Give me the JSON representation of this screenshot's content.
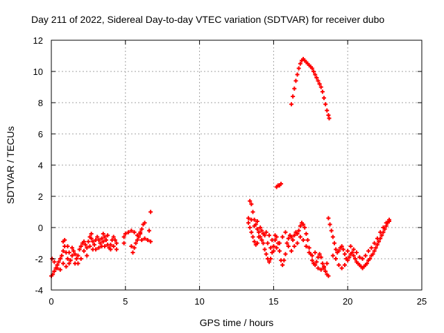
{
  "chart_data": {
    "type": "scatter",
    "title": "Day 211 of 2022, Sidereal Day-to-day VTEC variation (SDTVAR) for receiver dubo",
    "xlabel": "GPS time / hours",
    "ylabel": "SDTVAR / TECUs",
    "xlim": [
      0,
      25
    ],
    "ylim": [
      -4,
      12
    ],
    "xticks": [
      "0",
      "5",
      "10",
      "15",
      "20",
      "25"
    ],
    "yticks": [
      "-4",
      "-2",
      "0",
      "2",
      "4",
      "6",
      "8",
      "10",
      "12"
    ],
    "grid": true,
    "marker": "plus",
    "color": "#ff0000",
    "series": [
      {
        "name": "SDTVAR",
        "points": [
          [
            0.0,
            -3.1
          ],
          [
            0.1,
            -3.0
          ],
          [
            0.2,
            -2.8
          ],
          [
            0.3,
            -2.6
          ],
          [
            0.4,
            -2.4
          ],
          [
            0.5,
            -2.2
          ],
          [
            0.6,
            -2.0
          ],
          [
            0.7,
            -1.8
          ],
          [
            0.8,
            -1.5
          ],
          [
            0.9,
            -1.2
          ],
          [
            1.0,
            -1.6
          ],
          [
            1.1,
            -2.0
          ],
          [
            1.2,
            -2.3
          ],
          [
            1.3,
            -2.1
          ],
          [
            1.4,
            -1.8
          ],
          [
            1.5,
            -1.5
          ],
          [
            1.6,
            -1.7
          ],
          [
            1.7,
            -2.0
          ],
          [
            1.8,
            -1.8
          ],
          [
            1.9,
            -1.4
          ],
          [
            2.0,
            -1.2
          ],
          [
            2.1,
            -1.0
          ],
          [
            2.2,
            -0.9
          ],
          [
            2.3,
            -1.1
          ],
          [
            2.4,
            -1.3
          ],
          [
            2.5,
            -0.9
          ],
          [
            2.6,
            -0.6
          ],
          [
            2.7,
            -0.7
          ],
          [
            2.8,
            -0.9
          ],
          [
            2.9,
            -1.1
          ],
          [
            3.0,
            -0.8
          ],
          [
            3.1,
            -0.6
          ],
          [
            3.2,
            -0.8
          ],
          [
            3.3,
            -1.0
          ],
          [
            3.4,
            -1.2
          ],
          [
            3.5,
            -0.9
          ],
          [
            3.6,
            -0.6
          ],
          [
            3.7,
            -0.8
          ],
          [
            3.8,
            -1.1
          ],
          [
            3.9,
            -1.3
          ],
          [
            4.0,
            -1.1
          ],
          [
            4.1,
            -0.8
          ],
          [
            4.2,
            -0.6
          ],
          [
            4.3,
            -0.8
          ],
          [
            4.4,
            -1.0
          ],
          [
            0.05,
            -2.0
          ],
          [
            0.2,
            -2.2
          ],
          [
            0.4,
            -2.6
          ],
          [
            0.6,
            -2.7
          ],
          [
            0.8,
            -2.3
          ],
          [
            1.0,
            -2.5
          ],
          [
            1.2,
            -1.6
          ],
          [
            1.4,
            -1.3
          ],
          [
            1.6,
            -2.3
          ],
          [
            1.8,
            -2.3
          ],
          [
            2.0,
            -2.0
          ],
          [
            2.2,
            -1.5
          ],
          [
            2.4,
            -1.8
          ],
          [
            2.6,
            -1.2
          ],
          [
            2.8,
            -1.4
          ],
          [
            3.0,
            -1.4
          ],
          [
            3.2,
            -1.3
          ],
          [
            3.4,
            -0.7
          ],
          [
            3.6,
            -1.2
          ],
          [
            3.8,
            -0.5
          ],
          [
            4.0,
            -1.4
          ],
          [
            4.2,
            -1.2
          ],
          [
            4.4,
            -1.4
          ],
          [
            0.8,
            -0.9
          ],
          [
            0.9,
            -0.8
          ],
          [
            1.1,
            -1.2
          ],
          [
            2.7,
            -0.4
          ],
          [
            3.5,
            -0.4
          ],
          [
            4.9,
            -0.6
          ],
          [
            4.9,
            -1.0
          ],
          [
            5.0,
            -0.4
          ],
          [
            5.4,
            -1.2
          ],
          [
            5.5,
            -1.6
          ],
          [
            5.6,
            -1.3
          ],
          [
            5.7,
            -1.0
          ],
          [
            5.8,
            -0.8
          ],
          [
            5.9,
            -0.6
          ],
          [
            6.0,
            -0.3
          ],
          [
            6.1,
            -0.1
          ],
          [
            6.2,
            0.2
          ],
          [
            6.3,
            0.3
          ],
          [
            5.2,
            -0.3
          ],
          [
            5.4,
            -0.2
          ],
          [
            5.6,
            -0.3
          ],
          [
            5.8,
            -0.5
          ],
          [
            6.0,
            -0.4
          ],
          [
            6.1,
            -0.8
          ],
          [
            6.3,
            -0.7
          ],
          [
            6.5,
            -0.8
          ],
          [
            6.6,
            -0.2
          ],
          [
            6.7,
            -0.9
          ],
          [
            6.7,
            1.0
          ],
          [
            13.4,
            1.7
          ],
          [
            13.5,
            1.5
          ],
          [
            13.6,
            1.0
          ],
          [
            13.7,
            0.5
          ],
          [
            13.8,
            0.2
          ],
          [
            13.9,
            -0.1
          ],
          [
            14.0,
            -0.3
          ],
          [
            14.1,
            -0.6
          ],
          [
            14.2,
            -0.8
          ],
          [
            14.3,
            -1.0
          ],
          [
            14.4,
            -1.4
          ],
          [
            14.5,
            -1.7
          ],
          [
            14.6,
            -2.0
          ],
          [
            14.7,
            -2.2
          ],
          [
            14.8,
            -2.0
          ],
          [
            14.9,
            -1.6
          ],
          [
            15.0,
            -1.2
          ],
          [
            15.1,
            -0.8
          ],
          [
            15.2,
            -0.6
          ],
          [
            15.3,
            -1.0
          ],
          [
            15.4,
            -1.5
          ],
          [
            15.5,
            -2.1
          ],
          [
            15.6,
            -2.4
          ],
          [
            15.7,
            -2.1
          ],
          [
            15.8,
            -1.7
          ],
          [
            13.3,
            0.3
          ],
          [
            13.4,
            0.0
          ],
          [
            13.5,
            -0.3
          ],
          [
            13.6,
            -0.6
          ],
          [
            13.7,
            -0.9
          ],
          [
            13.8,
            -1.1
          ],
          [
            13.9,
            -1.0
          ],
          [
            14.0,
            -0.6
          ],
          [
            14.2,
            -0.2
          ],
          [
            14.4,
            -0.5
          ],
          [
            14.6,
            -1.0
          ],
          [
            14.8,
            -1.3
          ],
          [
            15.0,
            -1.5
          ],
          [
            15.2,
            -1.3
          ],
          [
            15.4,
            -1.0
          ],
          [
            15.6,
            -0.6
          ],
          [
            13.3,
            0.6
          ],
          [
            13.5,
            0.5
          ],
          [
            13.7,
            0.1
          ],
          [
            13.9,
            0.4
          ],
          [
            14.1,
            0.0
          ],
          [
            14.3,
            -0.4
          ],
          [
            14.5,
            -0.3
          ],
          [
            14.7,
            -0.5
          ],
          [
            14.9,
            -0.8
          ],
          [
            15.1,
            -0.5
          ],
          [
            15.2,
            2.6
          ],
          [
            15.3,
            2.7
          ],
          [
            15.4,
            2.7
          ],
          [
            15.5,
            2.8
          ],
          [
            15.9,
            -1.0
          ],
          [
            16.0,
            -0.7
          ],
          [
            16.1,
            -0.5
          ],
          [
            16.2,
            -0.6
          ],
          [
            16.3,
            -0.8
          ],
          [
            16.4,
            -0.5
          ],
          [
            16.5,
            -0.3
          ],
          [
            16.6,
            -0.4
          ],
          [
            16.7,
            -0.2
          ],
          [
            16.8,
            0.1
          ],
          [
            16.9,
            0.3
          ],
          [
            17.0,
            0.2
          ],
          [
            17.1,
            0.0
          ],
          [
            17.2,
            -0.4
          ],
          [
            17.3,
            -0.8
          ],
          [
            17.4,
            -1.3
          ],
          [
            17.5,
            -1.7
          ],
          [
            17.6,
            -2.1
          ],
          [
            17.7,
            -2.3
          ],
          [
            17.8,
            -2.4
          ],
          [
            17.9,
            -2.2
          ],
          [
            18.0,
            -1.9
          ],
          [
            18.1,
            -1.7
          ],
          [
            18.2,
            -1.9
          ],
          [
            18.3,
            -2.3
          ],
          [
            18.4,
            -2.6
          ],
          [
            18.5,
            -2.8
          ],
          [
            18.6,
            -3.0
          ],
          [
            18.7,
            -3.1
          ],
          [
            15.8,
            -0.3
          ],
          [
            16.0,
            -1.2
          ],
          [
            16.2,
            -1.5
          ],
          [
            16.4,
            -1.2
          ],
          [
            16.6,
            -1.0
          ],
          [
            16.8,
            -0.6
          ],
          [
            17.0,
            -0.8
          ],
          [
            17.2,
            -1.2
          ],
          [
            17.4,
            -1.6
          ],
          [
            17.6,
            -1.8
          ],
          [
            17.8,
            -1.6
          ],
          [
            18.0,
            -2.6
          ],
          [
            18.2,
            -2.7
          ],
          [
            18.4,
            -2.5
          ],
          [
            18.6,
            -2.3
          ],
          [
            16.2,
            7.9
          ],
          [
            16.3,
            8.4
          ],
          [
            16.4,
            8.9
          ],
          [
            16.5,
            9.4
          ],
          [
            16.6,
            9.8
          ],
          [
            16.7,
            10.2
          ],
          [
            16.8,
            10.5
          ],
          [
            16.9,
            10.7
          ],
          [
            17.0,
            10.8
          ],
          [
            17.1,
            10.7
          ],
          [
            17.2,
            10.6
          ],
          [
            17.3,
            10.5
          ],
          [
            17.4,
            10.4
          ],
          [
            17.5,
            10.3
          ],
          [
            17.6,
            10.2
          ],
          [
            17.7,
            10.0
          ],
          [
            17.8,
            9.8
          ],
          [
            17.9,
            9.6
          ],
          [
            18.0,
            9.4
          ],
          [
            18.1,
            9.2
          ],
          [
            18.2,
            9.0
          ],
          [
            18.3,
            8.7
          ],
          [
            18.4,
            8.3
          ],
          [
            18.5,
            7.9
          ],
          [
            18.6,
            7.5
          ],
          [
            18.7,
            7.2
          ],
          [
            18.75,
            7.0
          ],
          [
            18.7,
            0.6
          ],
          [
            18.8,
            0.2
          ],
          [
            18.9,
            -0.2
          ],
          [
            19.0,
            -0.6
          ],
          [
            19.1,
            -1.0
          ],
          [
            19.2,
            -1.4
          ],
          [
            19.3,
            -1.6
          ],
          [
            19.4,
            -1.5
          ],
          [
            19.5,
            -1.3
          ],
          [
            19.6,
            -1.2
          ],
          [
            19.7,
            -1.4
          ],
          [
            19.8,
            -1.7
          ],
          [
            19.9,
            -2.0
          ],
          [
            20.0,
            -2.1
          ],
          [
            20.1,
            -1.9
          ],
          [
            20.2,
            -1.7
          ],
          [
            20.3,
            -1.6
          ],
          [
            20.4,
            -1.8
          ],
          [
            20.5,
            -2.0
          ],
          [
            20.6,
            -2.2
          ],
          [
            20.7,
            -2.3
          ],
          [
            20.8,
            -2.4
          ],
          [
            20.9,
            -2.5
          ],
          [
            21.0,
            -2.6
          ],
          [
            21.1,
            -2.5
          ],
          [
            21.2,
            -2.4
          ],
          [
            21.3,
            -2.3
          ],
          [
            21.4,
            -2.1
          ],
          [
            21.5,
            -2.0
          ],
          [
            21.6,
            -1.8
          ],
          [
            21.7,
            -1.7
          ],
          [
            21.8,
            -1.5
          ],
          [
            21.9,
            -1.3
          ],
          [
            22.0,
            -1.1
          ],
          [
            22.1,
            -0.9
          ],
          [
            22.2,
            -0.7
          ],
          [
            22.3,
            -0.5
          ],
          [
            22.4,
            -0.3
          ],
          [
            22.5,
            -0.1
          ],
          [
            22.6,
            0.1
          ],
          [
            22.7,
            0.3
          ],
          [
            22.8,
            0.5
          ],
          [
            19.0,
            -1.8
          ],
          [
            19.2,
            -2.0
          ],
          [
            19.4,
            -2.4
          ],
          [
            19.6,
            -2.6
          ],
          [
            19.8,
            -2.4
          ],
          [
            20.0,
            -1.5
          ],
          [
            20.2,
            -1.2
          ],
          [
            20.4,
            -1.4
          ],
          [
            20.6,
            -1.6
          ],
          [
            20.8,
            -1.9
          ],
          [
            21.0,
            -2.0
          ],
          [
            21.2,
            -1.8
          ],
          [
            21.4,
            -1.5
          ],
          [
            21.6,
            -1.3
          ],
          [
            21.8,
            -1.0
          ],
          [
            22.0,
            -0.7
          ],
          [
            22.2,
            -0.3
          ],
          [
            22.4,
            0.0
          ],
          [
            22.6,
            0.3
          ],
          [
            22.8,
            0.4
          ]
        ]
      }
    ]
  }
}
